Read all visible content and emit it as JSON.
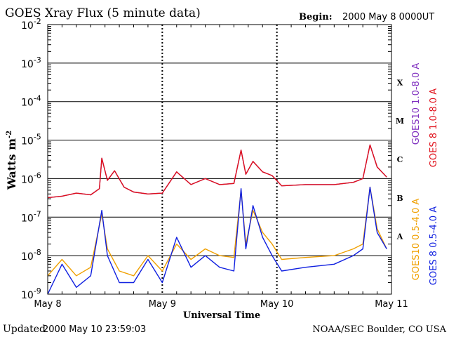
{
  "header": {
    "title": "GOES Xray Flux (5 minute data)",
    "begin_label": "Begin:",
    "begin_value": "2000 May 8 0000UT"
  },
  "footer": {
    "updated_label": "Updated",
    "updated_value": "2000 May 10 23:59:03",
    "source": "NOAA/SEC Boulder, CO USA"
  },
  "colors": {
    "goes10_long": "#7f2fbf",
    "goes8_long": "#e0101a",
    "goes10_short": "#f0a000",
    "goes8_short": "#1020e0"
  },
  "chart_data": {
    "type": "line",
    "title": "GOES Xray Flux (5 minute data)",
    "xlabel": "Universal Time",
    "ylabel": "Watts m",
    "ylabel_sup": "-2",
    "yscale": "log",
    "ylim": [
      1e-09,
      0.01
    ],
    "xlim": [
      "2000-05-08",
      "2000-05-11"
    ],
    "y_ticks": [
      {
        "base": "10",
        "exp": "-2"
      },
      {
        "base": "10",
        "exp": "-3"
      },
      {
        "base": "10",
        "exp": "-4"
      },
      {
        "base": "10",
        "exp": "-5"
      },
      {
        "base": "10",
        "exp": "-6"
      },
      {
        "base": "10",
        "exp": "-7"
      },
      {
        "base": "10",
        "exp": "-8"
      },
      {
        "base": "10",
        "exp": "-9"
      }
    ],
    "x_ticks": [
      "May 8",
      "May 9",
      "May 10",
      "May 11"
    ],
    "flare_classes": [
      "X",
      "M",
      "C",
      "B",
      "A"
    ],
    "grid": true,
    "legend": [
      "GOES10 1.0-8.0 A",
      "GOES 8 1.0-8.0 A",
      "GOES10 0.5-4.0 A",
      "GOES 8 0.5-4.0 A"
    ],
    "series": [
      {
        "name": "GOES10 1.0-8.0 A",
        "values": [
          [
            "2000-05-08T00:00",
            3.2e-07
          ],
          [
            "2000-05-08T03:00",
            3.5e-07
          ],
          [
            "2000-05-08T06:00",
            4.2e-07
          ],
          [
            "2000-05-08T09:00",
            3.8e-07
          ],
          [
            "2000-05-08T10:50",
            5.5e-07
          ],
          [
            "2000-05-08T11:20",
            3.4e-06
          ],
          [
            "2000-05-08T12:30",
            9e-07
          ],
          [
            "2000-05-08T14:00",
            1.6e-06
          ],
          [
            "2000-05-08T16:00",
            6e-07
          ],
          [
            "2000-05-08T18:00",
            4.5e-07
          ],
          [
            "2000-05-08T21:00",
            4e-07
          ],
          [
            "2000-05-09T00:00",
            4.2e-07
          ],
          [
            "2000-05-09T03:00",
            1.5e-06
          ],
          [
            "2000-05-09T06:00",
            7e-07
          ],
          [
            "2000-05-09T09:00",
            1e-06
          ],
          [
            "2000-05-09T12:00",
            7e-07
          ],
          [
            "2000-05-09T15:00",
            7.5e-07
          ],
          [
            "2000-05-09T16:30",
            5.5e-06
          ],
          [
            "2000-05-09T17:30",
            1.3e-06
          ],
          [
            "2000-05-09T19:00",
            2.8e-06
          ],
          [
            "2000-05-09T21:00",
            1.5e-06
          ],
          [
            "2000-05-09T23:00",
            1.2e-06
          ],
          [
            "2000-05-10T01:00",
            6.5e-07
          ],
          [
            "2000-05-10T06:00",
            7e-07
          ],
          [
            "2000-05-10T12:00",
            7e-07
          ],
          [
            "2000-05-10T16:00",
            8e-07
          ],
          [
            "2000-05-10T18:00",
            1e-06
          ],
          [
            "2000-05-10T19:30",
            7.5e-06
          ],
          [
            "2000-05-10T21:00",
            2e-06
          ],
          [
            "2000-05-10T23:00",
            1.1e-06
          ]
        ]
      },
      {
        "name": "GOES 8 1.0-8.0 A",
        "values": [
          [
            "2000-05-08T00:00",
            3.2e-07
          ],
          [
            "2000-05-08T03:00",
            3.5e-07
          ],
          [
            "2000-05-08T06:00",
            4.2e-07
          ],
          [
            "2000-05-08T09:00",
            3.8e-07
          ],
          [
            "2000-05-08T10:50",
            5.5e-07
          ],
          [
            "2000-05-08T11:20",
            3.4e-06
          ],
          [
            "2000-05-08T12:30",
            9e-07
          ],
          [
            "2000-05-08T14:00",
            1.6e-06
          ],
          [
            "2000-05-08T16:00",
            6e-07
          ],
          [
            "2000-05-08T18:00",
            4.5e-07
          ],
          [
            "2000-05-08T21:00",
            4e-07
          ],
          [
            "2000-05-09T00:00",
            4.2e-07
          ],
          [
            "2000-05-09T03:00",
            1.5e-06
          ],
          [
            "2000-05-09T06:00",
            7e-07
          ],
          [
            "2000-05-09T09:00",
            1e-06
          ],
          [
            "2000-05-09T12:00",
            7e-07
          ],
          [
            "2000-05-09T15:00",
            7.5e-07
          ],
          [
            "2000-05-09T16:30",
            5.5e-06
          ],
          [
            "2000-05-09T17:30",
            1.3e-06
          ],
          [
            "2000-05-09T19:00",
            2.8e-06
          ],
          [
            "2000-05-09T21:00",
            1.5e-06
          ],
          [
            "2000-05-09T23:00",
            1.2e-06
          ],
          [
            "2000-05-10T01:00",
            6.5e-07
          ],
          [
            "2000-05-10T06:00",
            7e-07
          ],
          [
            "2000-05-10T12:00",
            7e-07
          ],
          [
            "2000-05-10T16:00",
            8e-07
          ],
          [
            "2000-05-10T18:00",
            1e-06
          ],
          [
            "2000-05-10T19:30",
            7.5e-06
          ],
          [
            "2000-05-10T21:00",
            2e-06
          ],
          [
            "2000-05-10T23:00",
            1.1e-06
          ]
        ]
      },
      {
        "name": "GOES10 0.5-4.0 A",
        "values": [
          [
            "2000-05-08T00:00",
            3e-09
          ],
          [
            "2000-05-08T03:00",
            8e-09
          ],
          [
            "2000-05-08T06:00",
            3e-09
          ],
          [
            "2000-05-08T09:00",
            5e-09
          ],
          [
            "2000-05-08T11:20",
            1.2e-07
          ],
          [
            "2000-05-08T12:30",
            1.5e-08
          ],
          [
            "2000-05-08T15:00",
            4e-09
          ],
          [
            "2000-05-08T18:00",
            3e-09
          ],
          [
            "2000-05-08T21:00",
            1e-08
          ],
          [
            "2000-05-09T00:00",
            4e-09
          ],
          [
            "2000-05-09T03:00",
            2e-08
          ],
          [
            "2000-05-09T06:00",
            8e-09
          ],
          [
            "2000-05-09T09:00",
            1.5e-08
          ],
          [
            "2000-05-09T12:00",
            1e-08
          ],
          [
            "2000-05-09T15:00",
            9e-09
          ],
          [
            "2000-05-09T16:30",
            5e-07
          ],
          [
            "2000-05-09T17:30",
            2e-08
          ],
          [
            "2000-05-09T19:00",
            1.5e-07
          ],
          [
            "2000-05-09T21:00",
            4e-08
          ],
          [
            "2000-05-09T23:00",
            2e-08
          ],
          [
            "2000-05-10T01:00",
            8e-09
          ],
          [
            "2000-05-10T06:00",
            9e-09
          ],
          [
            "2000-05-10T12:00",
            1e-08
          ],
          [
            "2000-05-10T16:00",
            1.5e-08
          ],
          [
            "2000-05-10T18:00",
            2e-08
          ],
          [
            "2000-05-10T19:30",
            6e-07
          ],
          [
            "2000-05-10T21:00",
            5e-08
          ],
          [
            "2000-05-10T23:00",
            1.5e-08
          ]
        ]
      },
      {
        "name": "GOES 8 0.5-4.0 A",
        "values": [
          [
            "2000-05-08T00:00",
            1e-09
          ],
          [
            "2000-05-08T03:00",
            6e-09
          ],
          [
            "2000-05-08T06:00",
            1.5e-09
          ],
          [
            "2000-05-08T09:00",
            3e-09
          ],
          [
            "2000-05-08T11:20",
            1.5e-07
          ],
          [
            "2000-05-08T12:30",
            1e-08
          ],
          [
            "2000-05-08T15:00",
            2e-09
          ],
          [
            "2000-05-08T18:00",
            2e-09
          ],
          [
            "2000-05-08T21:00",
            8e-09
          ],
          [
            "2000-05-09T00:00",
            2e-09
          ],
          [
            "2000-05-09T03:00",
            3e-08
          ],
          [
            "2000-05-09T06:00",
            5e-09
          ],
          [
            "2000-05-09T09:00",
            1e-08
          ],
          [
            "2000-05-09T12:00",
            5e-09
          ],
          [
            "2000-05-09T15:00",
            4e-09
          ],
          [
            "2000-05-09T16:30",
            5.5e-07
          ],
          [
            "2000-05-09T17:30",
            1.5e-08
          ],
          [
            "2000-05-09T19:00",
            2e-07
          ],
          [
            "2000-05-09T21:00",
            3e-08
          ],
          [
            "2000-05-09T23:00",
            1e-08
          ],
          [
            "2000-05-10T01:00",
            4e-09
          ],
          [
            "2000-05-10T06:00",
            5e-09
          ],
          [
            "2000-05-10T12:00",
            6e-09
          ],
          [
            "2000-05-10T16:00",
            1e-08
          ],
          [
            "2000-05-10T18:00",
            1.5e-08
          ],
          [
            "2000-05-10T19:30",
            6e-07
          ],
          [
            "2000-05-10T21:00",
            4e-08
          ],
          [
            "2000-05-10T23:00",
            1.5e-08
          ]
        ]
      }
    ]
  }
}
